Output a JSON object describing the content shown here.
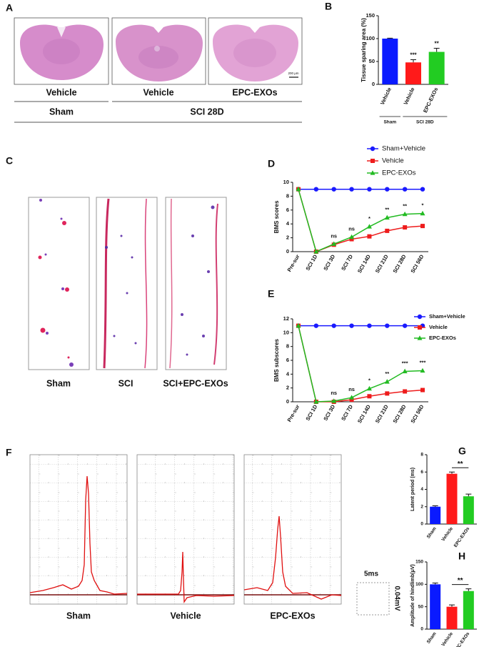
{
  "figure": {
    "panel_labels": [
      "A",
      "B",
      "C",
      "D",
      "E",
      "F",
      "G",
      "H"
    ],
    "a": {
      "image_labels": [
        "Vehicle",
        "Vehicle",
        "EPC-EXOs"
      ],
      "group_labels": [
        "Sham",
        "SCI 28D"
      ],
      "scale_bar": "200 μm"
    },
    "c": {
      "image_labels": [
        "Sham",
        "SCI",
        "SCI+EPC-EXOs"
      ]
    },
    "f": {
      "trace_labels": [
        "Sham",
        "Vehicle",
        "EPC-EXOs"
      ],
      "time_scale": "5ms",
      "amplitude_scale": "0.04mV"
    }
  },
  "chart_data": [
    {
      "type": "bar",
      "y_label": "Tissue sparing area (%)",
      "categories": [
        "Vehicle",
        "Vehicle",
        "EPC-EXOs"
      ],
      "group_labels": [
        "Sham",
        "SCI 28D"
      ],
      "values": [
        100,
        48,
        71
      ],
      "errors": [
        1,
        6,
        8
      ],
      "colors": [
        "#0a1aff",
        "#ff1a1a",
        "#22cc22"
      ],
      "annotations": [
        null,
        "***",
        "**"
      ],
      "ylim": [
        0,
        150
      ],
      "yticks": [
        0,
        50,
        100,
        150
      ]
    },
    {
      "type": "line",
      "y_label": "BMS scores",
      "categories": [
        "Pre-sur",
        "SCI 1D",
        "SCI 3D",
        "SCI 7D",
        "SCI 14D",
        "SCI 21D",
        "SCI 28D",
        "SCI 56D"
      ],
      "series": [
        {
          "name": "Sham+Vehicle",
          "color": "#1a1aff",
          "marker": "circle",
          "values": [
            9,
            9,
            9,
            9,
            9,
            9,
            9,
            9
          ]
        },
        {
          "name": "Vehicle",
          "color": "#ee1c1c",
          "marker": "square",
          "values": [
            9,
            0,
            1,
            1.8,
            2.2,
            3,
            3.5,
            3.7
          ]
        },
        {
          "name": "EPC-EXOs",
          "color": "#22bb22",
          "marker": "triangle",
          "values": [
            9,
            0,
            1.1,
            2.1,
            3.6,
            4.9,
            5.4,
            5.5
          ]
        }
      ],
      "annotations": [
        null,
        null,
        "ns",
        "ns",
        "*",
        "**",
        "**",
        "*"
      ],
      "legend": "outside upper right",
      "ylim": [
        0,
        10
      ],
      "yticks": [
        0,
        2,
        4,
        6,
        8,
        10
      ]
    },
    {
      "type": "line",
      "y_label": "BMS subscores",
      "categories": [
        "Pre-sur",
        "SCI 1D",
        "SCI 3D",
        "SCI 7D",
        "SCI 14D",
        "SCI 21D",
        "SCI 28D",
        "SCI 56D"
      ],
      "series": [
        {
          "name": "Sham+Vehicle",
          "color": "#1a1aff",
          "marker": "circle",
          "values": [
            11,
            11,
            11,
            11,
            11,
            11,
            11,
            11
          ]
        },
        {
          "name": "Vehicle",
          "color": "#ee1c1c",
          "marker": "square",
          "values": [
            11,
            0,
            0,
            0.3,
            0.8,
            1.2,
            1.5,
            1.7
          ]
        },
        {
          "name": "EPC-EXOs",
          "color": "#22bb22",
          "marker": "triangle",
          "values": [
            11,
            0,
            0.1,
            0.6,
            1.9,
            2.9,
            4.4,
            4.5
          ]
        }
      ],
      "annotations": [
        null,
        null,
        "ns",
        "ns",
        "*",
        "**",
        "***",
        "***"
      ],
      "legend": "upper right",
      "ylim": [
        0,
        12
      ],
      "yticks": [
        0,
        2,
        4,
        6,
        8,
        10,
        12
      ]
    },
    {
      "type": "bar",
      "y_label": "Latent period (ms)",
      "categories": [
        "Sham",
        "Vehicle",
        "EPC-EXOs"
      ],
      "values": [
        2,
        5.8,
        3.2
      ],
      "errors": [
        0.1,
        0.2,
        0.25
      ],
      "colors": [
        "#0a1aff",
        "#ff1a1a",
        "#22cc22"
      ],
      "annotations": [
        null,
        null,
        "**"
      ],
      "ylim": [
        0,
        8
      ],
      "yticks": [
        0,
        2,
        4,
        6,
        8
      ]
    },
    {
      "type": "bar",
      "y_label": "Amplitude of hindlimb(μV)",
      "categories": [
        "Sham",
        "Vehicle",
        "EPC-EXOs"
      ],
      "values": [
        100,
        50,
        85
      ],
      "errors": [
        3,
        4,
        5
      ],
      "colors": [
        "#0a1aff",
        "#ff1a1a",
        "#22cc22"
      ],
      "annotations": [
        null,
        null,
        "**"
      ],
      "ylim": [
        0,
        150
      ],
      "yticks": [
        0,
        50,
        100,
        150
      ]
    }
  ]
}
